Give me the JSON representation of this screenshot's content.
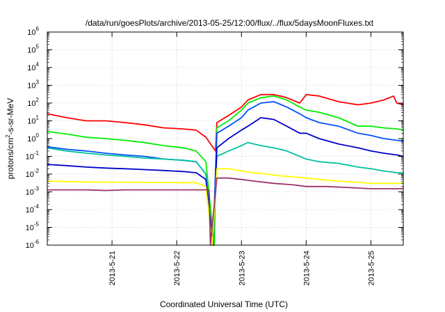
{
  "chart_data": {
    "type": "line",
    "title": "/data/run/goesPlots/archive/2013-05-25/12:00/flux/../flux/5daysMoonFluxes.txt",
    "xlabel": "Coordinated Universal Time (UTC)",
    "ylabel_main": "protons/cm",
    "ylabel_sup": "2",
    "ylabel_rest": "-s-sr-MeV",
    "log_y": true,
    "ylim": [
      1e-06,
      1000000.0
    ],
    "xlim": [
      0.0,
      5.5
    ],
    "grid": true,
    "y_tick_base": "10",
    "y_tick_exponents": [
      "-6",
      "-5",
      "-4",
      "-3",
      "-2",
      "-1",
      "0",
      "1",
      "2",
      "3",
      "4",
      "5",
      "6"
    ],
    "x_ticks": [
      {
        "label": "2013-5-21",
        "value": 1
      },
      {
        "label": "2013-5-22",
        "value": 2
      },
      {
        "label": "2013-5-23",
        "value": 3
      },
      {
        "label": "2013-5-24",
        "value": 4
      },
      {
        "label": "2013-5-25",
        "value": 5
      }
    ],
    "series": [
      {
        "color": "#ff0000",
        "x": [
          0.0,
          0.3,
          0.6,
          0.9,
          1.2,
          1.5,
          1.8,
          2.1,
          2.3,
          2.45,
          2.6,
          2.62,
          2.8,
          3.0,
          3.1,
          3.3,
          3.5,
          3.7,
          3.9,
          4.0,
          4.2,
          4.5,
          4.8,
          5.0,
          5.2,
          5.35,
          5.4,
          5.5
        ],
        "y": [
          25,
          15,
          10,
          10,
          8,
          6,
          4,
          3.5,
          3,
          1.2,
          0.2,
          8,
          20,
          60,
          150,
          300,
          300,
          200,
          100,
          300,
          250,
          120,
          80,
          100,
          150,
          250,
          100,
          80
        ]
      },
      {
        "color": "#00ee00",
        "x": [
          0.0,
          0.3,
          0.6,
          0.9,
          1.2,
          1.5,
          1.8,
          2.1,
          2.3,
          2.45,
          2.58,
          2.62,
          2.8,
          3.0,
          3.1,
          3.3,
          3.5,
          3.7,
          3.9,
          4.0,
          4.2,
          4.5,
          4.8,
          5.0,
          5.2,
          5.4,
          5.5
        ],
        "y": [
          2.5,
          1.8,
          1.2,
          1.0,
          0.8,
          0.6,
          0.4,
          0.3,
          0.2,
          0.05,
          1e-06,
          4,
          10,
          40,
          100,
          200,
          250,
          150,
          60,
          40,
          30,
          15,
          5,
          5,
          4,
          3.5,
          3
        ]
      },
      {
        "color": "#0050ff",
        "x": [
          0.0,
          0.3,
          0.6,
          0.9,
          1.2,
          1.5,
          1.8,
          2.1,
          2.3,
          2.45,
          2.56,
          2.62,
          2.8,
          3.0,
          3.1,
          3.3,
          3.5,
          3.7,
          3.9,
          4.0,
          4.2,
          4.5,
          4.8,
          5.0,
          5.2,
          5.4,
          5.5
        ],
        "y": [
          0.35,
          0.25,
          0.2,
          0.15,
          0.12,
          0.1,
          0.07,
          0.06,
          0.05,
          0.01,
          1e-06,
          2,
          5,
          15,
          40,
          100,
          120,
          60,
          25,
          15,
          8,
          5,
          2,
          1.5,
          1.0,
          0.8,
          0.7
        ]
      },
      {
        "color": "#00c0a0",
        "x": [
          0.0,
          0.3,
          0.6,
          0.9,
          1.2,
          1.5,
          1.8,
          2.1,
          2.3,
          2.45,
          2.55,
          2.62,
          2.8,
          3.0,
          3.1,
          3.3,
          3.5,
          3.7,
          3.9,
          4.0,
          4.2,
          4.5,
          4.8,
          5.0,
          5.2,
          5.4,
          5.5
        ],
        "y": [
          0.3,
          0.2,
          0.15,
          0.12,
          0.1,
          0.08,
          0.07,
          0.06,
          0.05,
          0.01,
          1e-06,
          0.1,
          0.2,
          0.4,
          0.6,
          0.4,
          0.3,
          0.2,
          0.1,
          0.07,
          0.05,
          0.04,
          0.025,
          0.02,
          0.015,
          0.012,
          0.012
        ]
      },
      {
        "color": "#0000cc",
        "x": [
          0.0,
          0.3,
          0.6,
          0.9,
          1.2,
          1.5,
          1.8,
          2.1,
          2.3,
          2.45,
          2.56,
          2.62,
          2.8,
          3.0,
          3.1,
          3.3,
          3.5,
          3.7,
          3.9,
          4.0,
          4.2,
          4.5,
          4.8,
          5.0,
          5.2,
          5.4,
          5.5
        ],
        "y": [
          0.035,
          0.03,
          0.025,
          0.022,
          0.02,
          0.018,
          0.016,
          0.014,
          0.012,
          0.005,
          1e-06,
          0.3,
          1,
          3,
          5,
          15,
          12,
          5,
          2,
          2,
          1,
          0.5,
          0.3,
          0.2,
          0.15,
          0.12,
          0.1
        ]
      },
      {
        "color": "#ffff00",
        "x": [
          0.0,
          0.3,
          0.6,
          0.9,
          1.2,
          1.5,
          1.8,
          2.1,
          2.3,
          2.45,
          2.55,
          2.62,
          2.8,
          3.0,
          3.2,
          3.4,
          3.6,
          3.8,
          4.0,
          4.2,
          4.5,
          4.8,
          5.0,
          5.2,
          5.5
        ],
        "y": [
          0.004,
          0.0038,
          0.0036,
          0.0035,
          0.0035,
          0.0034,
          0.0034,
          0.0033,
          0.0033,
          0.002,
          1e-06,
          0.02,
          0.02,
          0.015,
          0.012,
          0.01,
          0.008,
          0.007,
          0.006,
          0.005,
          0.004,
          0.0035,
          0.003,
          0.003,
          0.003
        ]
      },
      {
        "color": "#993366",
        "x": [
          0.0,
          0.3,
          0.6,
          0.9,
          1.2,
          1.5,
          1.8,
          2.1,
          2.3,
          2.4,
          2.5,
          2.52,
          2.62,
          2.8,
          3.0,
          3.2,
          3.5,
          3.8,
          4.0,
          4.3,
          4.6,
          5.0,
          5.3,
          5.5
        ],
        "y": [
          0.0013,
          0.0013,
          0.0013,
          0.0012,
          0.0013,
          0.0013,
          0.0013,
          0.0013,
          0.0013,
          0.0013,
          0.0013,
          1e-06,
          0.006,
          0.006,
          0.005,
          0.004,
          0.003,
          0.0025,
          0.002,
          0.002,
          0.0018,
          0.0015,
          0.0015,
          0.0015
        ]
      }
    ]
  }
}
